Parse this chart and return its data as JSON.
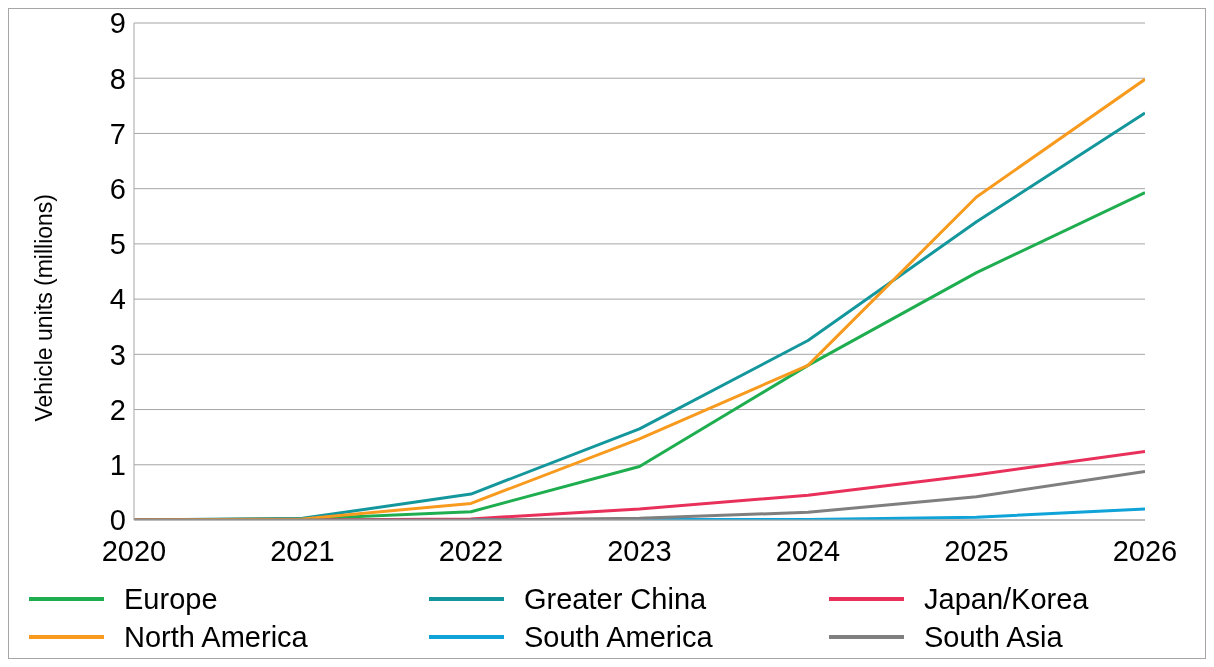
{
  "chart_data": {
    "type": "line",
    "ylabel": "Vehicle units (millions)",
    "x": [
      2020,
      2021,
      2022,
      2023,
      2024,
      2025,
      2026
    ],
    "xlim": [
      2020,
      2026
    ],
    "xticks": [
      2020,
      2021,
      2022,
      2023,
      2024,
      2025,
      2026
    ],
    "ylim": [
      0,
      9
    ],
    "yticks": [
      0,
      1,
      2,
      3,
      4,
      5,
      6,
      7,
      8,
      9
    ],
    "grid": "y",
    "legend": "bottom",
    "marker": "none",
    "line_style": "solid",
    "series": [
      {
        "name": "Europe",
        "color": "#1fae4f",
        "values": [
          0,
          0.02,
          0.15,
          0.97,
          2.8,
          4.48,
          5.93
        ]
      },
      {
        "name": "Greater China",
        "color": "#14979c",
        "values": [
          0,
          0.03,
          0.47,
          1.65,
          3.25,
          5.4,
          7.37
        ]
      },
      {
        "name": "Japan/Korea",
        "color": "#e8305a",
        "values": [
          0,
          0,
          0.02,
          0.2,
          0.45,
          0.82,
          1.24
        ]
      },
      {
        "name": "North America",
        "color": "#f79a1e",
        "values": [
          0,
          0.02,
          0.3,
          1.47,
          2.8,
          5.85,
          7.98
        ]
      },
      {
        "name": "South America",
        "color": "#10a3d8",
        "values": [
          null,
          null,
          0,
          0.01,
          0.01,
          0.05,
          0.2
        ]
      },
      {
        "name": "South Asia",
        "color": "#7f7f7f",
        "values": [
          0,
          0,
          0,
          0.03,
          0.14,
          0.42,
          0.88
        ]
      }
    ]
  }
}
